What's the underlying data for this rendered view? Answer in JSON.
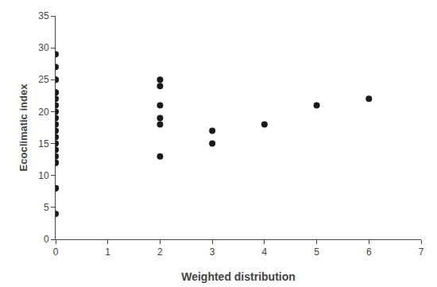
{
  "chart_data": {
    "type": "scatter",
    "x": [
      0,
      0,
      0,
      0,
      0,
      0,
      0,
      0,
      0,
      0,
      0,
      0,
      0,
      0,
      0,
      0,
      0,
      0,
      0,
      0,
      0,
      2,
      2,
      2,
      2,
      2,
      2,
      3,
      3,
      4,
      5,
      6
    ],
    "y": [
      29,
      27,
      25,
      25,
      23,
      23,
      22,
      21,
      20,
      19,
      18,
      17,
      16,
      15,
      14,
      13,
      12,
      12,
      8,
      8,
      4,
      25,
      24,
      21,
      19,
      18,
      13,
      17,
      15,
      18,
      21,
      22
    ],
    "xlabel": "Weighted distribution",
    "ylabel": "Ecoclimatic index",
    "xlim": [
      0,
      7
    ],
    "ylim": [
      0,
      35
    ],
    "xticks": [
      0,
      1,
      2,
      3,
      4,
      5,
      6,
      7
    ],
    "yticks": [
      0,
      5,
      10,
      15,
      20,
      25,
      30,
      35
    ],
    "color": "#1a1a1a",
    "grid": false
  }
}
